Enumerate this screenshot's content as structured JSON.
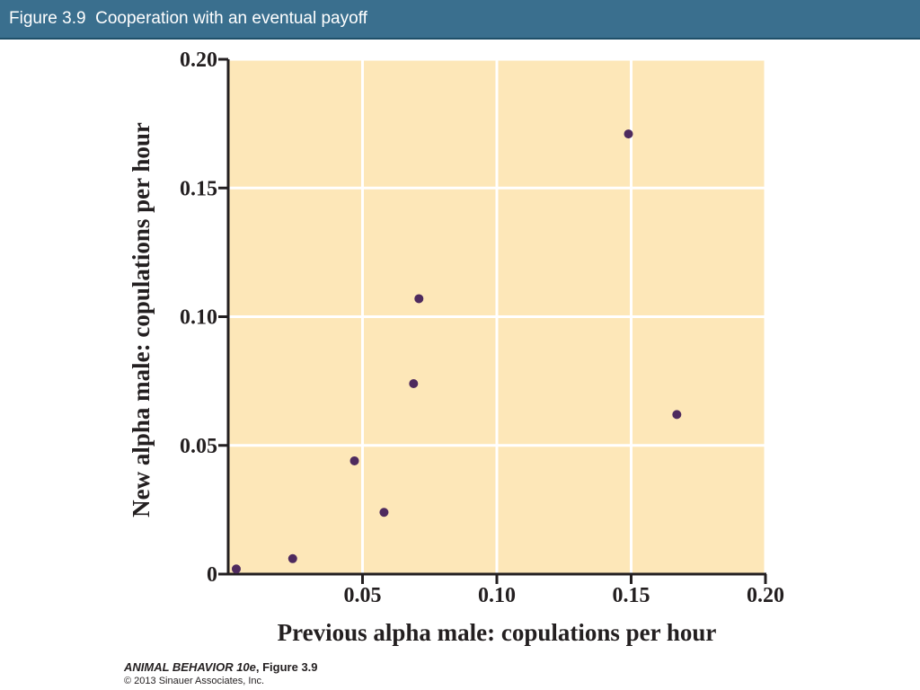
{
  "header": {
    "title": "Figure 3.9  Cooperation with an eventual payoff",
    "background_color": "#3a6f8e"
  },
  "chart_data": {
    "type": "scatter",
    "xlabel": "Previous alpha male: copulations per hour",
    "ylabel": "New alpha male: copulations per hour",
    "xlim": [
      0,
      0.2
    ],
    "ylim": [
      0,
      0.2
    ],
    "x_ticks": [
      0.05,
      0.1,
      0.15,
      0.2
    ],
    "x_tick_labels": [
      "0.05",
      "0.10",
      "0.15",
      "0.20"
    ],
    "y_ticks": [
      0,
      0.05,
      0.1,
      0.15,
      0.2
    ],
    "y_tick_labels": [
      "0",
      "0.05",
      "0.10",
      "0.15",
      "0.20"
    ],
    "grid": true,
    "plot_background": "#fde7b8",
    "grid_color": "#ffffff",
    "marker_color": "#4e2a5e",
    "points": [
      {
        "x": 0.003,
        "y": 0.002
      },
      {
        "x": 0.024,
        "y": 0.006
      },
      {
        "x": 0.047,
        "y": 0.044
      },
      {
        "x": 0.058,
        "y": 0.024
      },
      {
        "x": 0.069,
        "y": 0.074
      },
      {
        "x": 0.071,
        "y": 0.107
      },
      {
        "x": 0.149,
        "y": 0.171
      },
      {
        "x": 0.167,
        "y": 0.062
      }
    ]
  },
  "credits": {
    "book_title": "ANIMAL BEHAVIOR 10e",
    "figure_ref": ", Figure 3.9",
    "copyright": "© 2013 Sinauer Associates, Inc."
  }
}
